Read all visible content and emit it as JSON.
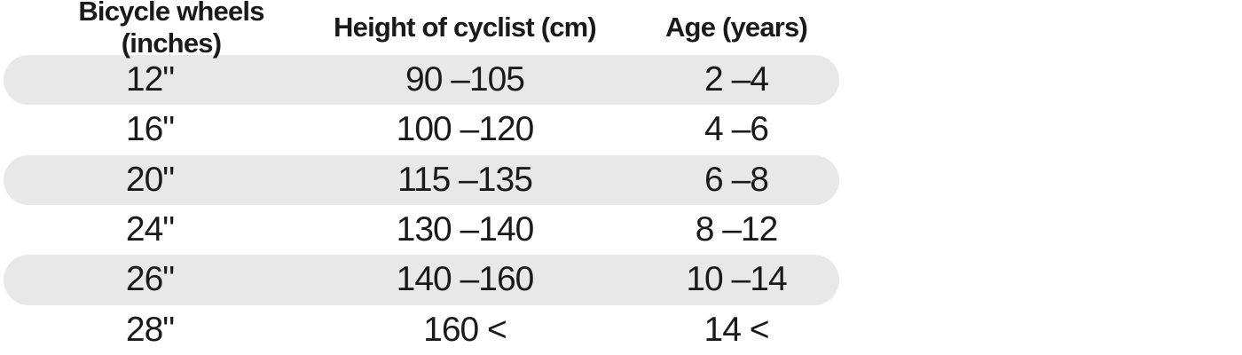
{
  "chart_data": {
    "type": "table",
    "columns": [
      "Bicycle wheels (inches)",
      "Height of cyclist (cm)",
      "Age (years)"
    ],
    "rows": [
      [
        "12\"",
        "90 –105",
        "2 –4"
      ],
      [
        "16\"",
        "100 –120",
        "4 –6"
      ],
      [
        "20\"",
        "115 –135",
        "6 –8"
      ],
      [
        "24\"",
        "130 –140",
        "8 –12"
      ],
      [
        "26\"",
        "140 –160",
        "10 –14"
      ],
      [
        "28\"",
        "160 <",
        "14 <"
      ]
    ],
    "shaded_row_indices": [
      0,
      2,
      4
    ],
    "layout": {
      "grid": false,
      "stripe_style": "rounded-pill",
      "alignment": "center"
    },
    "colors": {
      "row_stripe": "#e8e8e8",
      "text": "#1a1a1a",
      "background": "#ffffff"
    }
  }
}
